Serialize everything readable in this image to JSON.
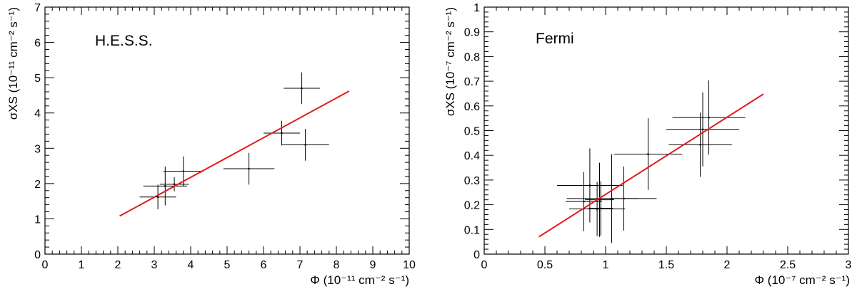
{
  "chart_data": [
    {
      "type": "scatter",
      "panel_label": "H.E.S.S.",
      "xlabel": "Φ (10⁻¹¹ cm⁻² s⁻¹)",
      "ylabel": "σXS (10⁻¹¹ cm⁻² s⁻¹)",
      "xlim": [
        0,
        10
      ],
      "ylim": [
        0,
        7
      ],
      "x_ticks": [
        0,
        1,
        2,
        3,
        4,
        5,
        6,
        7,
        8,
        9,
        10
      ],
      "y_ticks": [
        0,
        1,
        2,
        3,
        4,
        5,
        6,
        7
      ],
      "x_tick_labels": [
        "0",
        "1",
        "2",
        "3",
        "4",
        "5",
        "6",
        "7",
        "8",
        "9",
        "10"
      ],
      "y_tick_labels": [
        "0",
        "1",
        "2",
        "3",
        "4",
        "5",
        "6",
        "7"
      ],
      "points": [
        {
          "x": 3.1,
          "y": 1.62,
          "xerr": 0.5,
          "yerr": 0.35
        },
        {
          "x": 3.3,
          "y": 1.93,
          "xerr": 0.6,
          "yerr": 0.55
        },
        {
          "x": 3.55,
          "y": 1.98,
          "xerr": 0.4,
          "yerr": 0.2
        },
        {
          "x": 3.8,
          "y": 2.35,
          "xerr": 0.55,
          "yerr": 0.42
        },
        {
          "x": 5.6,
          "y": 2.42,
          "xerr": 0.7,
          "yerr": 0.45
        },
        {
          "x": 6.5,
          "y": 3.43,
          "xerr": 0.5,
          "yerr": 0.35
        },
        {
          "x": 7.05,
          "y": 4.7,
          "xerr": 0.5,
          "yerr": 0.45
        },
        {
          "x": 7.15,
          "y": 3.1,
          "xerr": 0.65,
          "yerr": 0.45
        }
      ],
      "fit_line": {
        "x": [
          2.05,
          8.35
        ],
        "y": [
          1.08,
          4.62
        ],
        "color": "#e31a1c"
      }
    },
    {
      "type": "scatter",
      "panel_label": "Fermi",
      "xlabel": "Φ (10⁻⁷ cm⁻² s⁻¹)",
      "ylabel": "σXS (10⁻⁷ cm⁻² s⁻¹)",
      "xlim": [
        0,
        3
      ],
      "ylim": [
        0,
        1
      ],
      "x_ticks": [
        0,
        0.5,
        1,
        1.5,
        2,
        2.5,
        3
      ],
      "y_ticks": [
        0,
        0.1,
        0.2,
        0.3,
        0.4,
        0.5,
        0.6,
        0.7,
        0.8,
        0.9,
        1
      ],
      "x_tick_labels": [
        "0",
        "0.5",
        "1",
        "1.5",
        "2",
        "2.5",
        "3"
      ],
      "y_tick_labels": [
        "0",
        "0.1",
        "0.2",
        "0.3",
        "0.4",
        "0.5",
        "0.6",
        "0.7",
        "0.8",
        "0.9",
        "1"
      ],
      "points": [
        {
          "x": 0.82,
          "y": 0.213,
          "xerr": 0.15,
          "yerr": 0.12
        },
        {
          "x": 0.87,
          "y": 0.278,
          "xerr": 0.27,
          "yerr": 0.15
        },
        {
          "x": 0.93,
          "y": 0.183,
          "xerr": 0.23,
          "yerr": 0.11
        },
        {
          "x": 0.95,
          "y": 0.22,
          "xerr": 0.12,
          "yerr": 0.15
        },
        {
          "x": 0.96,
          "y": 0.185,
          "xerr": 0.1,
          "yerr": 0.11
        },
        {
          "x": 1.05,
          "y": 0.225,
          "xerr": 0.37,
          "yerr": 0.18
        },
        {
          "x": 1.15,
          "y": 0.225,
          "xerr": 0.12,
          "yerr": 0.13
        },
        {
          "x": 1.35,
          "y": 0.405,
          "xerr": 0.28,
          "yerr": 0.145
        },
        {
          "x": 1.78,
          "y": 0.443,
          "xerr": 0.26,
          "yerr": 0.13
        },
        {
          "x": 1.8,
          "y": 0.505,
          "xerr": 0.3,
          "yerr": 0.15
        },
        {
          "x": 1.85,
          "y": 0.553,
          "xerr": 0.3,
          "yerr": 0.15
        }
      ],
      "fit_line": {
        "x": [
          0.45,
          2.3
        ],
        "y": [
          0.07,
          0.648
        ],
        "color": "#e31a1c"
      }
    }
  ]
}
